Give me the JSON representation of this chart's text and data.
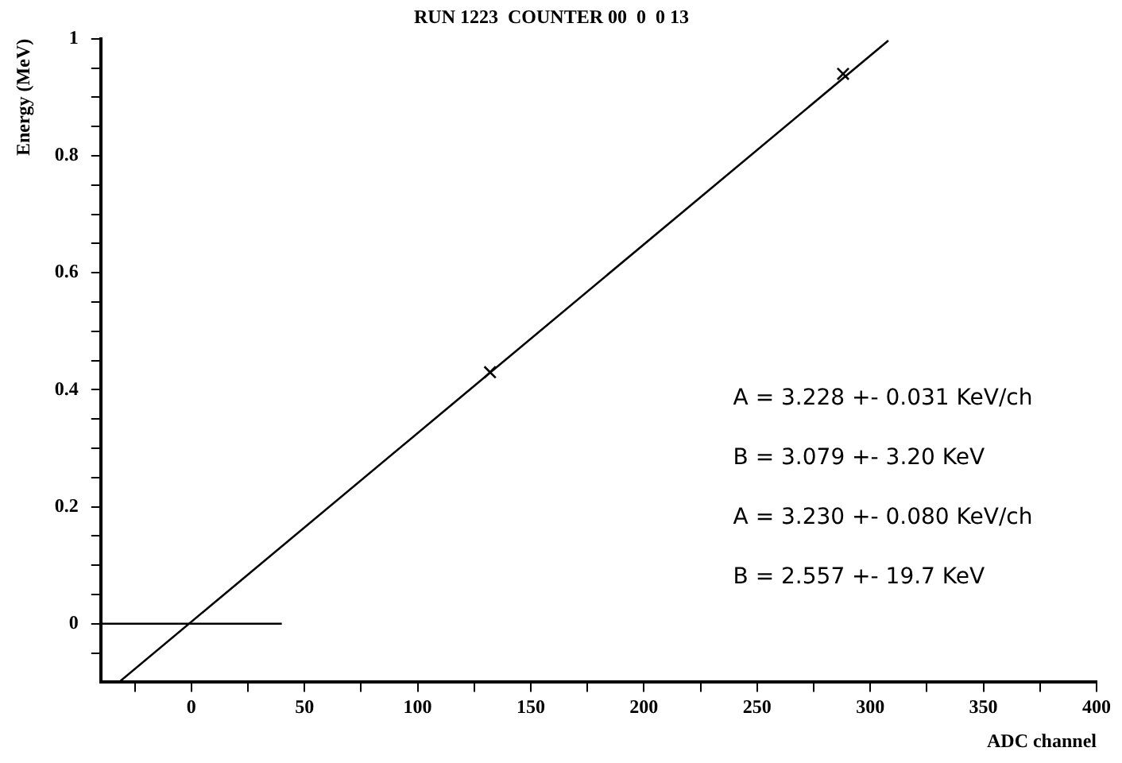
{
  "chart_data": {
    "type": "line",
    "title": "RUN 1223  COUNTER 00  0  0 13",
    "xlabel": "ADC channel",
    "ylabel": "Energy (MeV)",
    "xlim": [
      -40,
      400
    ],
    "ylim": [
      -0.1,
      1
    ],
    "xticks": [
      {
        "value": -25,
        "label": null
      },
      0,
      {
        "value": 25,
        "label": null
      },
      50,
      {
        "value": 75,
        "label": null
      },
      100,
      {
        "value": 125,
        "label": null
      },
      150,
      {
        "value": 175,
        "label": null
      },
      200,
      {
        "value": 225,
        "label": null
      },
      250,
      {
        "value": 275,
        "label": null
      },
      300,
      {
        "value": 325,
        "label": null
      },
      350,
      {
        "value": 375,
        "label": null
      },
      400
    ],
    "yticks": [
      {
        "value": -0.05,
        "label": null
      },
      0,
      {
        "value": 0.05,
        "label": null
      },
      {
        "value": 0.1,
        "label": null
      },
      {
        "value": 0.15,
        "label": null
      },
      0.2,
      {
        "value": 0.25,
        "label": null
      },
      {
        "value": 0.3,
        "label": null
      },
      {
        "value": 0.35,
        "label": null
      },
      0.4,
      {
        "value": 0.45,
        "label": null
      },
      {
        "value": 0.5,
        "label": null
      },
      {
        "value": 0.55,
        "label": null
      },
      0.6,
      {
        "value": 0.65,
        "label": null
      },
      {
        "value": 0.7,
        "label": null
      },
      {
        "value": 0.75,
        "label": null
      },
      0.8,
      {
        "value": 0.85,
        "label": null
      },
      {
        "value": 0.9,
        "label": null
      },
      {
        "value": 0.95,
        "label": null
      },
      1
    ],
    "marker": "none",
    "line_style": "solid",
    "legend": false,
    "series": [
      {
        "color": "#000000",
        "x": [
          -32,
          308
        ],
        "values": [
          -0.1,
          0.997
        ]
      },
      {
        "color": "#000000",
        "x": [
          -40,
          40
        ],
        "values": [
          0,
          0
        ]
      },
      {
        "type": "scatter",
        "color": "#000000",
        "marker": "cross",
        "x": [
          132,
          288
        ],
        "values": [
          0.43,
          0.94
        ]
      }
    ],
    "annotations": [
      "A = 3.228 +- 0.031 KeV/ch",
      "B = 3.079 +- 3.20 KeV",
      "A = 3.230 +- 0.080 KeV/ch",
      "B = 2.557 +- 19.7 KeV"
    ]
  }
}
